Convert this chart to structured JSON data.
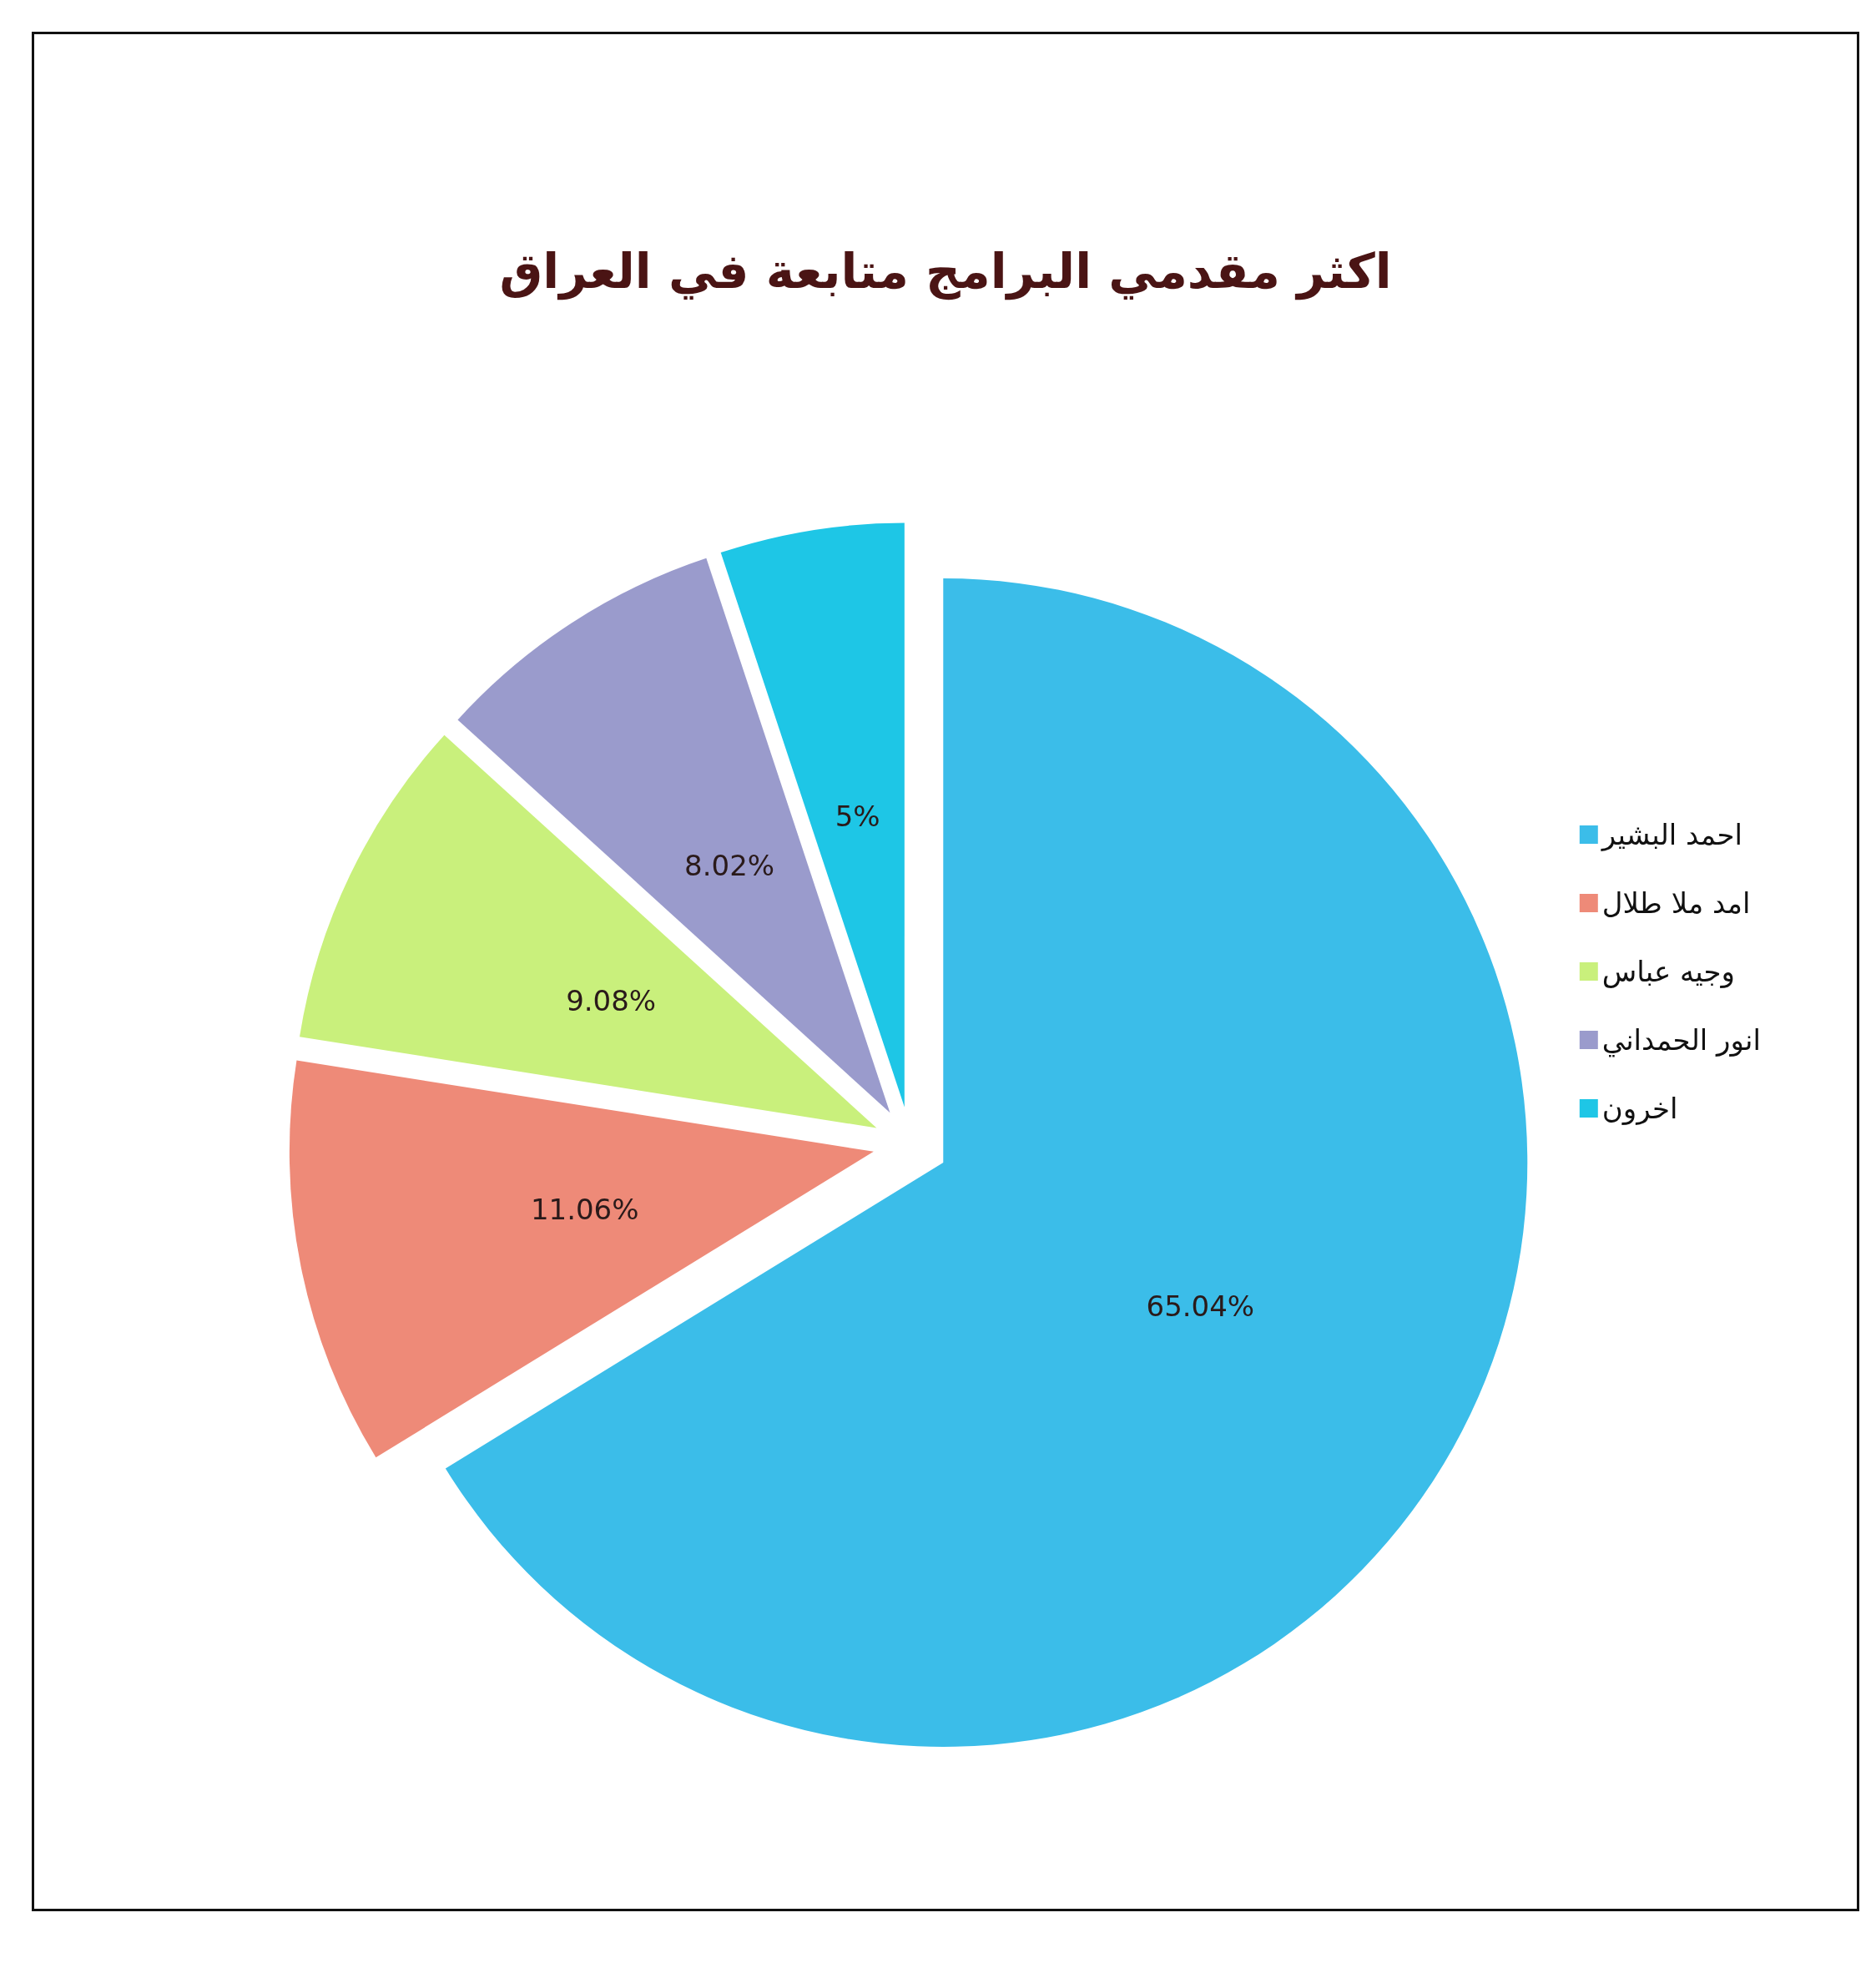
{
  "chart_data": {
    "type": "pie",
    "title": "اكثر مقدمي البرامج متابعة في العراق",
    "categories": [
      "احمد البشير",
      "امد ملا طلال",
      "وجيه عباس",
      "انور الحمداني",
      "اخرون"
    ],
    "values": [
      65.04,
      11.06,
      9.08,
      8.02,
      5
    ],
    "value_labels": [
      "65.04%",
      "11.06%",
      "9.08%",
      "8.02%",
      "5%"
    ],
    "colors": [
      "#3bbde9",
      "#ee8a78",
      "#c9f07c",
      "#9a9bcc",
      "#1ec6e6"
    ],
    "legend": "right"
  }
}
